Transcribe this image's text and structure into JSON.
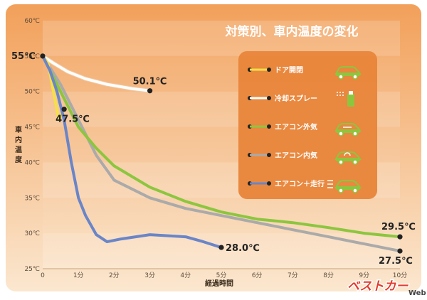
{
  "chart_data": {
    "type": "line",
    "title": "対策別、車内温度の変化",
    "xlabel": "経過時間",
    "ylabel": "車内温度",
    "xlim": [
      0,
      10
    ],
    "ylim": [
      25,
      60
    ],
    "x_ticks": [
      "0",
      "1分",
      "2分",
      "3分",
      "4分",
      "5分",
      "6分",
      "7分",
      "8分",
      "9分",
      "10分"
    ],
    "y_ticks": [
      "25℃",
      "30℃",
      "35℃",
      "40℃",
      "45℃",
      "50℃",
      "55℃",
      "60℃"
    ],
    "grid": "horizontal bands",
    "legend_position": "right",
    "series": [
      {
        "name": "ドア開閉",
        "color": "#f5e04a",
        "icon": "car-open-doors-icon",
        "x": [
          0,
          0.15,
          0.3,
          0.45,
          0.6
        ],
        "y": [
          55,
          54,
          50,
          46,
          47.5
        ]
      },
      {
        "name": "冷却スプレー",
        "color": "#ffffff",
        "icon": "spray-can-icon",
        "x": [
          0,
          0.3,
          0.7,
          1.2,
          1.8,
          2.5,
          3.0
        ],
        "y": [
          55,
          54,
          52.8,
          51.8,
          51,
          50.4,
          50.1
        ]
      },
      {
        "name": "エアコン外気",
        "color": "#8cc63f",
        "icon": "car-outside-air-icon",
        "x": [
          0,
          0.5,
          1.0,
          1.5,
          2.0,
          3.0,
          4.0,
          5.0,
          6.0,
          7.0,
          8.0,
          9.0,
          10.0
        ],
        "y": [
          55,
          50,
          45,
          42,
          39.5,
          36.5,
          34.5,
          33,
          32,
          31.5,
          30.8,
          30,
          29.5
        ]
      },
      {
        "name": "エアコン内気",
        "color": "#aaaaaa",
        "icon": "car-recirculate-icon",
        "x": [
          0,
          0.5,
          1.0,
          1.5,
          2.0,
          3.0,
          4.0,
          5.0,
          6.0,
          7.0,
          8.0,
          9.0,
          10.0
        ],
        "y": [
          55,
          51,
          46,
          41,
          37.5,
          35,
          33.5,
          32.5,
          31.5,
          30.5,
          29.5,
          28.5,
          27.5
        ]
      },
      {
        "name": "エアコン＋走行",
        "color": "#6a85c8",
        "icon": "car-driving-icon",
        "x": [
          0,
          0.2,
          0.4,
          0.6,
          0.8,
          1.0,
          1.2,
          1.5,
          1.8,
          2.2,
          3.0,
          4.0,
          4.5,
          5.0
        ],
        "y": [
          55,
          53,
          50,
          46,
          40,
          35,
          32.5,
          29.8,
          28.8,
          29.2,
          29.8,
          29.5,
          28.8,
          28
        ]
      }
    ],
    "annotations": [
      {
        "text": "55℃",
        "x": 0,
        "y": 55
      },
      {
        "text": "50.1℃",
        "x": 3,
        "y": 50.1
      },
      {
        "text": "47.5℃",
        "x": 0.6,
        "y": 47.5
      },
      {
        "text": "28.0℃",
        "x": 5,
        "y": 28
      },
      {
        "text": "29.5℃",
        "x": 10,
        "y": 29.5
      },
      {
        "text": "27.5℃",
        "x": 10,
        "y": 27.5
      }
    ]
  },
  "watermark": {
    "main": "ベストカー",
    "sub": "Web"
  }
}
